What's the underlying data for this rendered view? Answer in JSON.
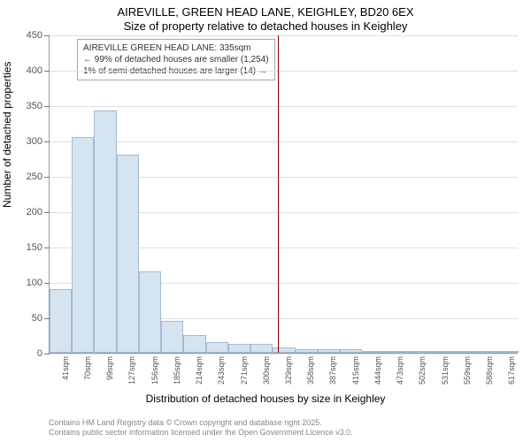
{
  "chart": {
    "type": "histogram",
    "title_line1": "AIREVILLE, GREEN HEAD LANE, KEIGHLEY, BD20 6EX",
    "title_line2": "Size of property relative to detached houses in Keighley",
    "ylabel": "Number of detached properties",
    "xlabel": "Distribution of detached houses by size in Keighley",
    "ylim": [
      0,
      450
    ],
    "ytick_step": 50,
    "yticks": [
      0,
      50,
      100,
      150,
      200,
      250,
      300,
      350,
      400,
      450
    ],
    "categories": [
      "41sqm",
      "70sqm",
      "99sqm",
      "127sqm",
      "156sqm",
      "185sqm",
      "214sqm",
      "243sqm",
      "271sqm",
      "300sqm",
      "329sqm",
      "358sqm",
      "387sqm",
      "415sqm",
      "444sqm",
      "473sqm",
      "502sqm",
      "531sqm",
      "559sqm",
      "588sqm",
      "617sqm"
    ],
    "values": [
      90,
      305,
      342,
      280,
      115,
      45,
      25,
      15,
      12,
      12,
      8,
      5,
      5,
      5,
      2,
      0,
      0,
      1,
      0,
      2,
      0
    ],
    "bar_fill": "#d6e3f0",
    "bar_border": "#a5bcd4",
    "background_color": "#ffffff",
    "grid_color": "#e0e0e0",
    "axis_color": "#999999",
    "tick_font_size": 11,
    "label_font_size": 12,
    "title_font_size": 13,
    "marker": {
      "position_sqm": 335,
      "color": "#8b0000"
    },
    "annotation": {
      "line1": "AIREVILLE GREEN HEAD LANE: 335sqm",
      "line2": "← 99% of detached houses are smaller (1,254)",
      "line3": "1% of semi-detached houses are larger (14) →",
      "border_color": "#aaaaaa",
      "font_size": 10
    }
  },
  "footer": {
    "line1": "Contains HM Land Registry data © Crown copyright and database right 2025.",
    "line2": "Contains public sector information licensed under the Open Government Licence v3.0."
  }
}
